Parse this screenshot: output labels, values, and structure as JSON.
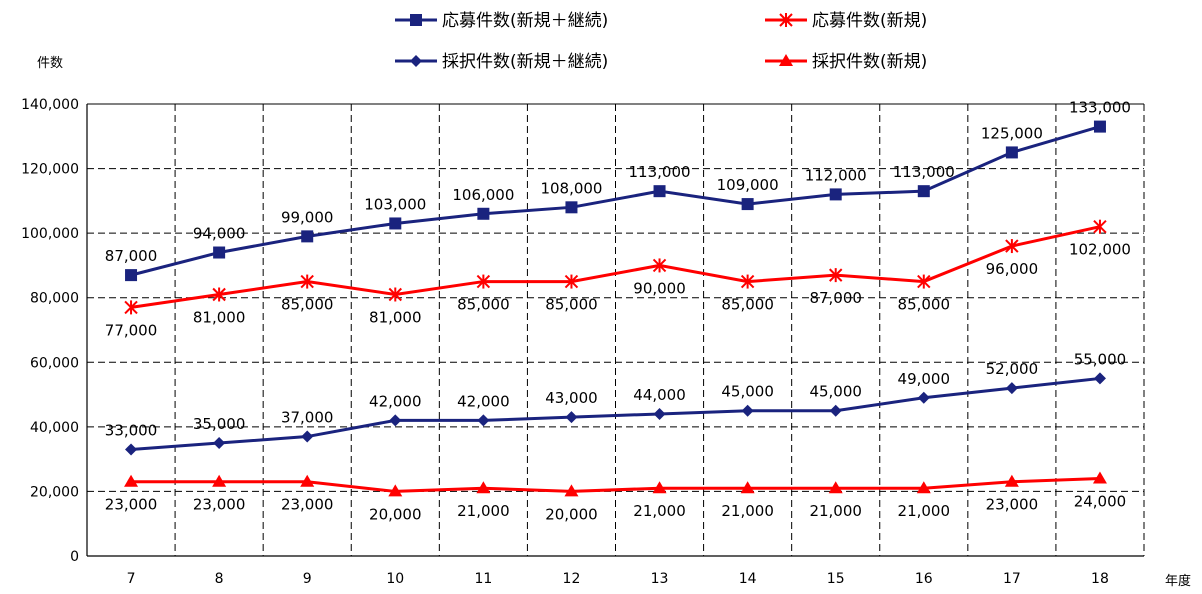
{
  "chart_data": {
    "type": "line",
    "title": "",
    "ylabel": "件数",
    "xlabel": "年度",
    "ylim": [
      0,
      140000
    ],
    "yticks": [
      0,
      20000,
      40000,
      60000,
      80000,
      100000,
      120000,
      140000
    ],
    "ytick_labels": [
      "0",
      "20,000",
      "40,000",
      "60,000",
      "80,000",
      "100,000",
      "120,000",
      "140,000"
    ],
    "categories": [
      "7",
      "8",
      "9",
      "10",
      "11",
      "12",
      "13",
      "14",
      "15",
      "16",
      "17",
      "18"
    ],
    "grid": true,
    "legend_position": "top",
    "series": [
      {
        "name": "応募件数(新規＋継続)",
        "color": "#1a237e",
        "marker": "square",
        "label_position": "above",
        "values": [
          87000,
          94000,
          99000,
          103000,
          106000,
          108000,
          113000,
          109000,
          112000,
          113000,
          125000,
          133000
        ],
        "value_labels": [
          "87,000",
          "94,000",
          "99,000",
          "103,000",
          "106,000",
          "108,000",
          "113,000",
          "109,000",
          "112,000",
          "113,000",
          "125,000",
          "133,000"
        ]
      },
      {
        "name": "応募件数(新規)",
        "color": "#ff0000",
        "marker": "asterisk",
        "label_position": "below",
        "values": [
          77000,
          81000,
          85000,
          81000,
          85000,
          85000,
          90000,
          85000,
          87000,
          85000,
          96000,
          102000
        ],
        "value_labels": [
          "77,000",
          "81,000",
          "85,000",
          "81,000",
          "85,000",
          "85,000",
          "90,000",
          "85,000",
          "87,000",
          "85,000",
          "96,000",
          "102,000"
        ]
      },
      {
        "name": "採択件数(新規＋継続)",
        "color": "#1a237e",
        "marker": "diamond",
        "label_position": "above",
        "values": [
          33000,
          35000,
          37000,
          42000,
          42000,
          43000,
          44000,
          45000,
          45000,
          49000,
          52000,
          55000
        ],
        "value_labels": [
          "33,000",
          "35,000",
          "37,000",
          "42,000",
          "42,000",
          "43,000",
          "44,000",
          "45,000",
          "45,000",
          "49,000",
          "52,000",
          "55,000"
        ]
      },
      {
        "name": "採択件数(新規)",
        "color": "#ff0000",
        "marker": "triangle",
        "label_position": "below",
        "values": [
          23000,
          23000,
          23000,
          20000,
          21000,
          20000,
          21000,
          21000,
          21000,
          21000,
          23000,
          24000
        ],
        "value_labels": [
          "23,000",
          "23,000",
          "23,000",
          "20,000",
          "21,000",
          "20,000",
          "21,000",
          "21,000",
          "21,000",
          "21,000",
          "23,000",
          "24,000"
        ]
      }
    ]
  }
}
